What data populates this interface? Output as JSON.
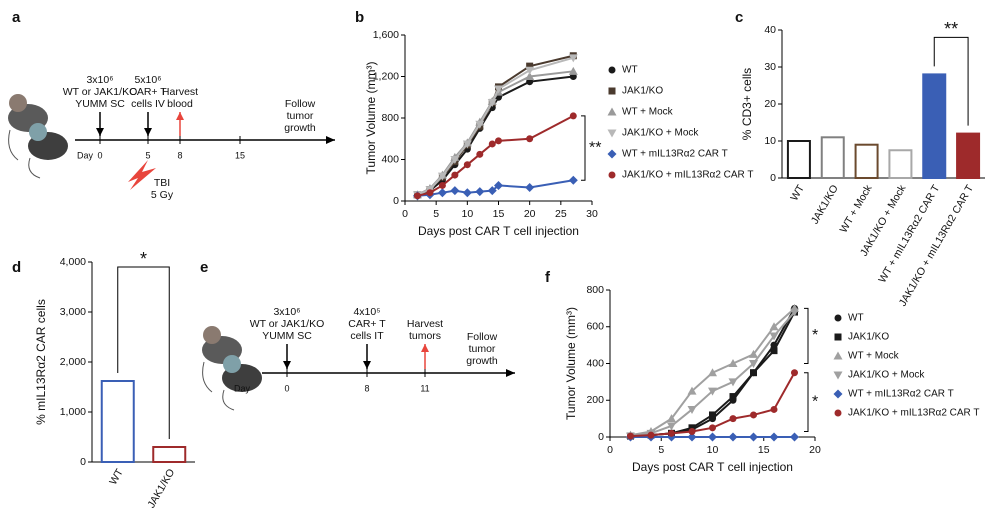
{
  "panel_labels": [
    "a",
    "b",
    "c",
    "d",
    "e",
    "f"
  ],
  "timelines": [
    {
      "day_label": "Day",
      "ticks": [
        "0",
        "5",
        "8",
        "15"
      ],
      "events": [
        {
          "lines": [
            "3x10⁶",
            "WT or JAK1/KO",
            "YUMM SC"
          ],
          "arrow": "#000000"
        },
        {
          "lines": [
            "5x10⁶",
            "CAR+ T",
            "cells IV"
          ],
          "arrow": "#000000"
        },
        {
          "lines": [
            "Harvest",
            "blood"
          ],
          "arrow": "#e8453c"
        }
      ],
      "follow": [
        "Follow",
        "tumor",
        "growth"
      ],
      "treatment": [
        "TBI",
        "5 Gy"
      ]
    },
    {
      "day_label": "Day",
      "ticks": [
        "0",
        "8",
        "11"
      ],
      "events": [
        {
          "lines": [
            "3x10⁶",
            "WT or JAK1/KO",
            "YUMM SC"
          ],
          "arrow": "#000000"
        },
        {
          "lines": [
            "4x10⁵",
            "CAR+ T",
            "cells IT"
          ],
          "arrow": "#000000"
        },
        {
          "lines": [
            "Harvest",
            "tumors"
          ],
          "arrow": "#e8453c"
        }
      ],
      "follow": [
        "Follow",
        "tumor",
        "growth"
      ]
    }
  ],
  "chart_data": [
    {
      "type": "line",
      "xlabel": "Days post CAR T cell injection",
      "ylabel": "Tumor Volume (mm³)",
      "x": [
        2,
        4,
        6,
        8,
        10,
        12,
        14,
        15,
        20,
        27
      ],
      "xlim": [
        0,
        30
      ],
      "xticks": [
        0,
        5,
        10,
        15,
        20,
        25,
        30
      ],
      "ylim": [
        0,
        1600
      ],
      "yticks": [
        0,
        400,
        800,
        {
          "value": 1200,
          "label": "1,200"
        },
        {
          "value": 1600,
          "label": "1,600"
        }
      ],
      "series": [
        {
          "name": "WT",
          "color": "#1a1a1a",
          "marker": "circle",
          "values": [
            60,
            100,
            200,
            350,
            500,
            700,
            900,
            1000,
            1150,
            1200
          ]
        },
        {
          "name": "JAK1/KO",
          "color": "#4a3a2e",
          "marker": "square",
          "values": [
            60,
            110,
            230,
            380,
            540,
            720,
            950,
            1100,
            1300,
            1400
          ]
        },
        {
          "name": "WT + Mock",
          "color": "#9a9a9a",
          "marker": "triangle",
          "values": [
            60,
            120,
            250,
            420,
            560,
            760,
            960,
            1050,
            1200,
            1250
          ]
        },
        {
          "name": "JAK1/KO + Mock",
          "color": "#b8b8b8",
          "marker": "triangle-down",
          "values": [
            60,
            110,
            240,
            400,
            550,
            740,
            950,
            1080,
            1260,
            1380
          ]
        },
        {
          "name": "WT + mIL13Rα2 CAR T",
          "color": "#3a5fb5",
          "marker": "diamond",
          "values": [
            50,
            60,
            80,
            100,
            80,
            90,
            100,
            150,
            130,
            200
          ]
        },
        {
          "name": "JAK1/KO + mIL13Rα2 CAR T",
          "color": "#9e2a2b",
          "marker": "circle",
          "values": [
            50,
            80,
            150,
            250,
            350,
            450,
            550,
            580,
            600,
            820
          ]
        }
      ],
      "annotations": [
        "**"
      ]
    },
    {
      "type": "bar",
      "ylabel": "% CD3+ cells",
      "categories": [
        "WT",
        "JAK1/KO",
        "WT + Mock",
        "JAK1/KO + Mock",
        "WT + mIL13Rα2 CAR T",
        "JAK1/KO + mIL13Rα2 CAR T"
      ],
      "values": [
        10,
        11,
        9,
        7.5,
        28,
        12
      ],
      "colors": [
        "#1a1a1a",
        "#808080",
        "#6b4a2e",
        "#a8a8a8",
        "#3a5fb5",
        "#9e2a2b"
      ],
      "fills": [
        "#ffffff",
        "#ffffff",
        "#ffffff",
        "#ffffff",
        "#3a5fb5",
        "#9e2a2b"
      ],
      "ylim": [
        0,
        40
      ],
      "yticks": [
        0,
        10,
        20,
        30,
        40
      ],
      "annotations": [
        "**"
      ]
    },
    {
      "type": "bar",
      "ylabel": "% mIL13Rα2  CAR  cells",
      "categories": [
        "WT",
        "JAK1/KO"
      ],
      "values": [
        1620,
        300
      ],
      "colors": [
        "#3a5fb5",
        "#9e2a2b"
      ],
      "fills": [
        "#ffffff",
        "#ffffff"
      ],
      "ylim": [
        0,
        4000
      ],
      "yticks": [
        0,
        {
          "value": 1000,
          "label": "1,000"
        },
        {
          "value": 2000,
          "label": "2,000"
        },
        {
          "value": 3000,
          "label": "3,000"
        },
        {
          "value": 4000,
          "label": "4,000"
        }
      ],
      "annotations": [
        "*"
      ]
    },
    {
      "type": "line",
      "xlabel": "Days post CAR T cell injection",
      "ylabel": "Tumor Volume (mm³)",
      "x": [
        2,
        4,
        6,
        8,
        10,
        12,
        14,
        16,
        18
      ],
      "xlim": [
        0,
        20
      ],
      "xticks": [
        0,
        5,
        10,
        15,
        20
      ],
      "ylim": [
        0,
        800
      ],
      "yticks": [
        0,
        200,
        400,
        600,
        800
      ],
      "series": [
        {
          "name": "WT",
          "color": "#1a1a1a",
          "marker": "circle",
          "values": [
            5,
            10,
            20,
            40,
            100,
            200,
            350,
            500,
            700
          ]
        },
        {
          "name": "JAK1/KO",
          "color": "#1a1a1a",
          "marker": "square",
          "values": [
            5,
            10,
            20,
            50,
            120,
            220,
            350,
            470,
            680
          ]
        },
        {
          "name": "WT + Mock",
          "color": "#a0a0a0",
          "marker": "triangle",
          "values": [
            10,
            30,
            100,
            250,
            350,
            400,
            450,
            600,
            700
          ]
        },
        {
          "name": "JAK1/KO + Mock",
          "color": "#a0a0a0",
          "marker": "triangle-down",
          "values": [
            5,
            20,
            60,
            150,
            250,
            300,
            400,
            550,
            680
          ]
        },
        {
          "name": "WT + mIL13Rα2 CAR T",
          "color": "#3a5fb5",
          "marker": "diamond",
          "values": [
            0,
            0,
            0,
            0,
            0,
            0,
            0,
            0,
            0
          ]
        },
        {
          "name": "JAK1/KO + mIL13Rα2 CAR T",
          "color": "#9e2a2b",
          "marker": "circle",
          "values": [
            5,
            10,
            20,
            30,
            50,
            100,
            120,
            150,
            350
          ]
        }
      ],
      "annotations": [
        "*",
        "*"
      ]
    }
  ]
}
